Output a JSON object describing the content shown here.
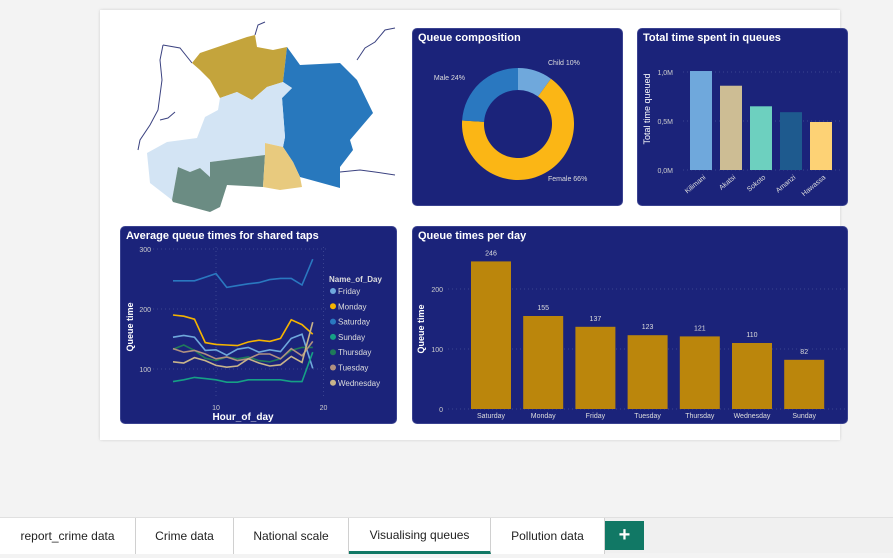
{
  "tabs": [
    {
      "label": "report_crime data"
    },
    {
      "label": "Crime data"
    },
    {
      "label": "National scale"
    },
    {
      "label": "Visualising queues",
      "active": true
    },
    {
      "label": "Pollution data"
    }
  ],
  "add_tab_label": "+",
  "map": {
    "region_colors": [
      "#c4a43c",
      "#2878bd",
      "#d3e4f4",
      "#6b8c83",
      "#e8ca7e"
    ]
  },
  "chart_data": [
    {
      "type": "pie",
      "title": "Queue composition",
      "donut": true,
      "slices": [
        {
          "label": "Child 10%",
          "name": "Child",
          "value": 10,
          "color": "#6fa8dc"
        },
        {
          "label": "Female 66%",
          "name": "Female",
          "value": 66,
          "color": "#fbb615"
        },
        {
          "label": "Male 24%",
          "name": "Male",
          "value": 24,
          "color": "#2a78c0"
        }
      ]
    },
    {
      "type": "bar",
      "title": "Total time spent in queues",
      "ylabel": "Total time queued",
      "ylim": [
        0,
        1.0
      ],
      "yticks": [
        {
          "v": 0,
          "label": "0,0M"
        },
        {
          "v": 0.5,
          "label": "0,5M"
        },
        {
          "v": 1.0,
          "label": "1,0M"
        }
      ],
      "categories": [
        "Kilimani",
        "Akatsi",
        "Sokoto",
        "Amanzi",
        "Hawassa"
      ],
      "values": [
        1.01,
        0.86,
        0.65,
        0.59,
        0.49
      ],
      "colors": [
        "#6fa8dc",
        "#cdbd94",
        "#6dd0bf",
        "#1e5a8e",
        "#fdd275"
      ]
    },
    {
      "type": "line",
      "title": "Average queue times for shared taps",
      "xlabel": "Hour_of_day",
      "ylabel": "Queue time",
      "xticks": [
        10,
        20
      ],
      "yticks": [
        100,
        200,
        300
      ],
      "legend_title": "Name_of_Day",
      "legend": "right",
      "x": [
        6,
        7,
        8,
        9,
        10,
        11,
        12,
        13,
        14,
        15,
        16,
        17,
        18,
        19
      ],
      "series": [
        {
          "name": "Friday",
          "color": "#6fa8dc",
          "values": [
            153,
            156,
            153,
            131,
            132,
            123,
            133,
            136,
            128,
            132,
            129,
            151,
            158,
            101
          ]
        },
        {
          "name": "Monday",
          "color": "#f5b400",
          "values": [
            190,
            188,
            183,
            144,
            141,
            140,
            139,
            145,
            148,
            146,
            151,
            182,
            174,
            158
          ]
        },
        {
          "name": "Saturday",
          "color": "#2a78c0",
          "values": [
            247,
            247,
            247,
            253,
            259,
            236,
            239,
            242,
            244,
            249,
            251,
            251,
            240,
            283
          ]
        },
        {
          "name": "Sunday",
          "color": "#16a085",
          "values": [
            79,
            82,
            86,
            84,
            82,
            78,
            78,
            82,
            82,
            82,
            82,
            79,
            79,
            128
          ]
        },
        {
          "name": "Thursday",
          "color": "#1f7a5a",
          "values": [
            133,
            140,
            131,
            118,
            114,
            120,
            117,
            120,
            114,
            112,
            117,
            131,
            136,
            136
          ]
        },
        {
          "name": "Tuesday",
          "color": "#b09080",
          "values": [
            134,
            128,
            131,
            125,
            117,
            120,
            114,
            117,
            125,
            125,
            117,
            134,
            122,
            146
          ]
        },
        {
          "name": "Wednesday",
          "color": "#c8b48a",
          "values": [
            112,
            110,
            119,
            114,
            106,
            103,
            105,
            117,
            110,
            105,
            107,
            121,
            111,
            178
          ]
        }
      ]
    },
    {
      "type": "bar",
      "title": "Queue times per day",
      "ylabel": "Queue time",
      "ylim": [
        0,
        260
      ],
      "yticks": [
        0,
        100,
        200
      ],
      "categories": [
        "Saturday",
        "Monday",
        "Friday",
        "Tuesday",
        "Thursday",
        "Wednesday",
        "Sunday"
      ],
      "values": [
        246,
        155,
        137,
        123,
        121,
        110,
        82
      ],
      "color": "#bb860c"
    }
  ]
}
